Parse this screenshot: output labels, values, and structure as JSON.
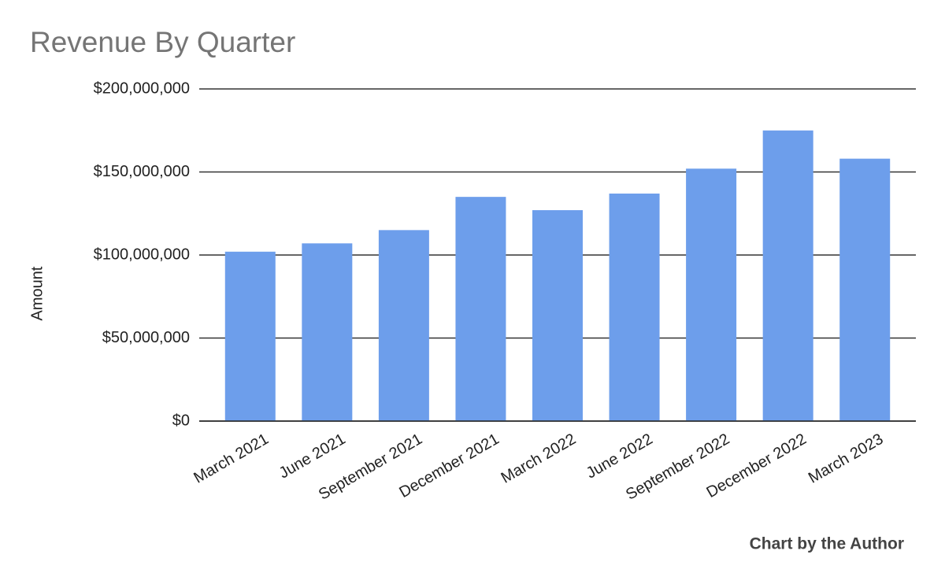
{
  "chart_data": {
    "type": "bar",
    "title": "Revenue By Quarter",
    "y_label": "Amount",
    "footer": "Chart by the Author",
    "categories": [
      "March 2021",
      "June 2021",
      "September 2021",
      "December 2021",
      "March 2022",
      "June 2022",
      "September 2022",
      "December 2022",
      "March 2023"
    ],
    "values": [
      102000000,
      107000000,
      115000000,
      135000000,
      127000000,
      137000000,
      152000000,
      175000000,
      158000000
    ],
    "color": "#6d9eeb",
    "ylim": [
      0,
      200000000
    ],
    "yticks": [
      {
        "value": 0,
        "label": "$0"
      },
      {
        "value": 50000000,
        "label": "$50,000,000"
      },
      {
        "value": 100000000,
        "label": "$100,000,000"
      },
      {
        "value": 150000000,
        "label": "$150,000,000"
      },
      {
        "value": 200000000,
        "label": "$200,000,000"
      }
    ],
    "grid": true
  }
}
